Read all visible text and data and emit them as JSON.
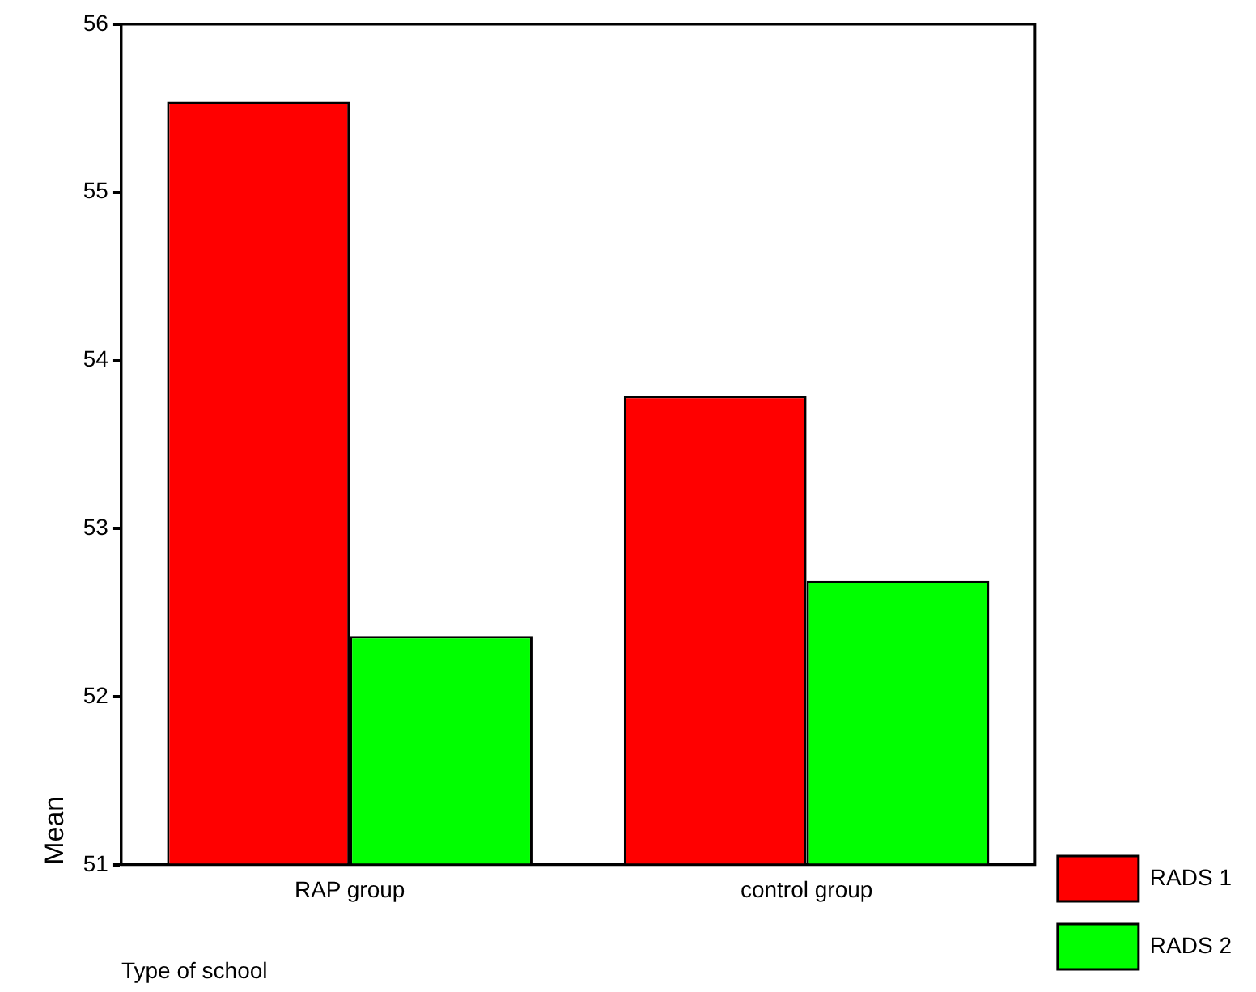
{
  "chart_data": {
    "type": "bar",
    "xlabel": "Type of school",
    "ylabel": "Mean",
    "categories": [
      "RAP group",
      "control group"
    ],
    "series": [
      {
        "name": "RADS 1",
        "color": "#ff0000",
        "values": [
          55.54,
          53.79
        ]
      },
      {
        "name": "RADS 2",
        "color": "#00ff00",
        "values": [
          52.36,
          52.69
        ]
      }
    ],
    "ylim": [
      51,
      56
    ],
    "yticks": [
      51,
      52,
      53,
      54,
      55,
      56
    ],
    "grid": false,
    "legend": "right"
  }
}
